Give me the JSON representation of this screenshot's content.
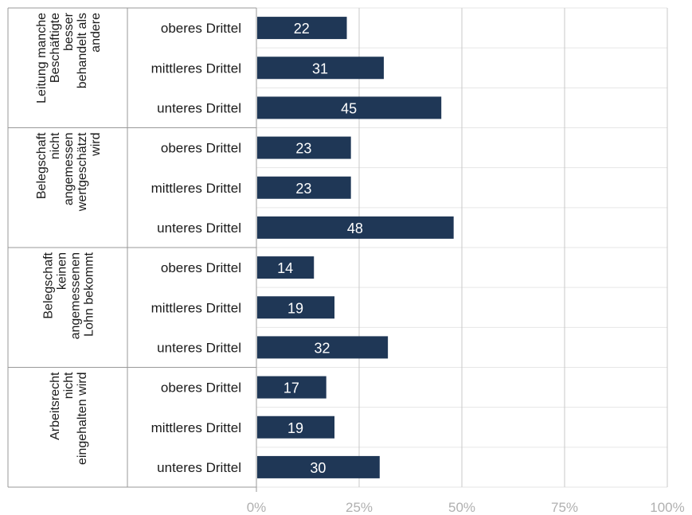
{
  "chart_data": {
    "type": "bar",
    "orientation": "horizontal",
    "xlim": [
      0,
      100
    ],
    "x_ticks": [
      "0%",
      "25%",
      "50%",
      "75%",
      "100%"
    ],
    "grid": true,
    "bar_color": "#1f3756",
    "groups": [
      {
        "label_lines": [
          "Leitung manche",
          "Beschäftigte",
          "besser",
          "behandelt als",
          "andere"
        ],
        "categories": [
          "oberes Drittel",
          "mittleres Drittel",
          "unteres Drittel"
        ],
        "values": [
          22,
          31,
          45
        ]
      },
      {
        "label_lines": [
          "Belegschaft",
          "nicht",
          "angemessen",
          "wertgeschätzt",
          "wird"
        ],
        "categories": [
          "oberes Drittel",
          "mittleres Drittel",
          "unteres Drittel"
        ],
        "values": [
          23,
          23,
          48
        ]
      },
      {
        "label_lines": [
          "Belegschaft",
          "keinen",
          "angemessenen",
          "Lohn bekommt"
        ],
        "categories": [
          "oberes Drittel",
          "mittleres Drittel",
          "unteres Drittel"
        ],
        "values": [
          14,
          19,
          32
        ]
      },
      {
        "label_lines": [
          "Arbeitsrecht",
          "nicht",
          "eingehalten wird"
        ],
        "categories": [
          "oberes Drittel",
          "mittleres Drittel",
          "unteres Drittel"
        ],
        "values": [
          17,
          19,
          30
        ]
      }
    ]
  }
}
